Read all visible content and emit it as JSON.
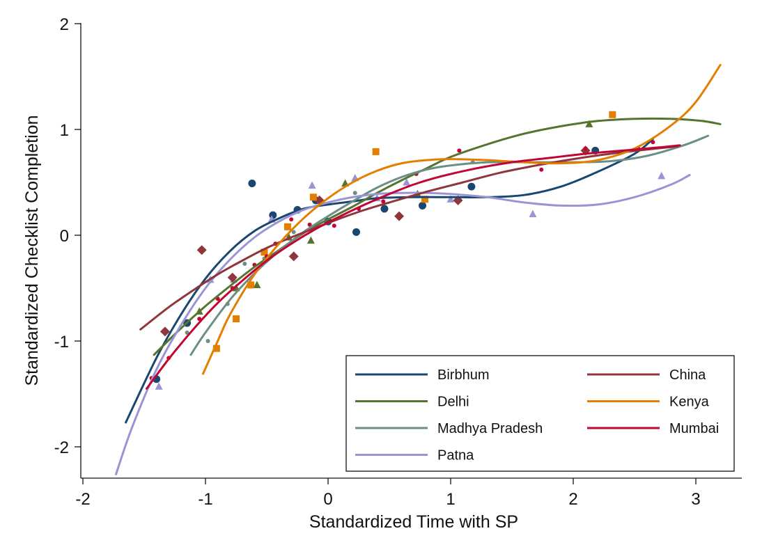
{
  "chart_data": {
    "type": "scatter",
    "title": "",
    "xlabel": "Standardized Time with SP",
    "ylabel": "Standardized Checklist Completion",
    "xlim": [
      -2.0,
      3.4
    ],
    "ylim": [
      -2.3,
      2.0
    ],
    "xticks": [
      "-2",
      "-1",
      "0",
      "1",
      "2",
      "3"
    ],
    "yticks": [
      "2",
      "1",
      "0",
      "-1",
      "-2"
    ],
    "grid": false,
    "legend_position": "bottom-right",
    "series": [
      {
        "name": "Birbhum",
        "color": "#1a476f",
        "marker": "circle",
        "points": [
          [
            -1.4,
            -1.36
          ],
          [
            -1.15,
            -0.83
          ],
          [
            -0.62,
            0.49
          ],
          [
            -0.45,
            0.19
          ],
          [
            -0.25,
            0.24
          ],
          [
            -0.1,
            0.33
          ],
          [
            0.0,
            0.13
          ],
          [
            0.23,
            0.03
          ],
          [
            0.46,
            0.25
          ],
          [
            0.77,
            0.28
          ],
          [
            1.17,
            0.46
          ],
          [
            2.18,
            0.8
          ]
        ],
        "curve": [
          [
            -1.65,
            -1.77
          ],
          [
            -1.4,
            -1.16
          ],
          [
            -1.2,
            -0.75
          ],
          [
            -1.0,
            -0.41
          ],
          [
            -0.8,
            -0.15
          ],
          [
            -0.6,
            0.04
          ],
          [
            -0.4,
            0.16
          ],
          [
            -0.2,
            0.25
          ],
          [
            0.0,
            0.29
          ],
          [
            0.2,
            0.32
          ],
          [
            0.4,
            0.35
          ],
          [
            0.7,
            0.36
          ],
          [
            1.0,
            0.36
          ],
          [
            1.3,
            0.36
          ],
          [
            1.6,
            0.38
          ],
          [
            1.9,
            0.46
          ],
          [
            2.2,
            0.6
          ],
          [
            2.5,
            0.77
          ],
          [
            2.65,
            0.91
          ]
        ]
      },
      {
        "name": "Delhi",
        "color": "#55752f",
        "marker": "triangle",
        "points": [
          [
            -1.05,
            -0.72
          ],
          [
            -0.75,
            -0.5
          ],
          [
            -0.58,
            -0.47
          ],
          [
            -0.32,
            -0.02
          ],
          [
            -0.14,
            -0.05
          ],
          [
            0.14,
            0.49
          ],
          [
            0.73,
            0.39
          ],
          [
            2.13,
            1.05
          ]
        ],
        "curve": [
          [
            -1.42,
            -1.13
          ],
          [
            -1.2,
            -0.88
          ],
          [
            -1.0,
            -0.67
          ],
          [
            -0.8,
            -0.48
          ],
          [
            -0.6,
            -0.3
          ],
          [
            -0.4,
            -0.14
          ],
          [
            -0.2,
            0.02
          ],
          [
            0.0,
            0.15
          ],
          [
            0.2,
            0.27
          ],
          [
            0.4,
            0.4
          ],
          [
            0.6,
            0.52
          ],
          [
            0.8,
            0.63
          ],
          [
            1.0,
            0.74
          ],
          [
            1.3,
            0.86
          ],
          [
            1.6,
            0.96
          ],
          [
            1.9,
            1.03
          ],
          [
            2.2,
            1.08
          ],
          [
            2.5,
            1.1
          ],
          [
            2.8,
            1.1
          ],
          [
            3.05,
            1.08
          ],
          [
            3.2,
            1.05
          ]
        ]
      },
      {
        "name": "Madhya Pradesh",
        "color": "#6b8e86",
        "marker": "dot",
        "points": [
          [
            -1.15,
            -0.92
          ],
          [
            -0.98,
            -1.0
          ],
          [
            -0.82,
            -0.65
          ],
          [
            -0.68,
            -0.27
          ],
          [
            -0.52,
            -0.22
          ],
          [
            -0.28,
            0.03
          ],
          [
            0.22,
            0.4
          ],
          [
            1.18,
            0.69
          ]
        ],
        "curve": [
          [
            -1.12,
            -1.13
          ],
          [
            -1.0,
            -0.92
          ],
          [
            -0.8,
            -0.61
          ],
          [
            -0.6,
            -0.36
          ],
          [
            -0.4,
            -0.15
          ],
          [
            -0.2,
            0.03
          ],
          [
            0.0,
            0.18
          ],
          [
            0.2,
            0.32
          ],
          [
            0.4,
            0.45
          ],
          [
            0.6,
            0.55
          ],
          [
            0.8,
            0.62
          ],
          [
            1.0,
            0.66
          ],
          [
            1.3,
            0.69
          ],
          [
            1.6,
            0.69
          ],
          [
            2.0,
            0.69
          ],
          [
            2.3,
            0.7
          ],
          [
            2.6,
            0.75
          ],
          [
            2.9,
            0.85
          ],
          [
            3.1,
            0.94
          ]
        ]
      },
      {
        "name": "Patna",
        "color": "#9a94d4",
        "marker": "triangle",
        "points": [
          [
            -1.38,
            -1.43
          ],
          [
            -0.96,
            -0.42
          ],
          [
            -0.77,
            -0.42
          ],
          [
            -0.46,
            0.15
          ],
          [
            -0.13,
            0.47
          ],
          [
            0.22,
            0.54
          ],
          [
            0.4,
            0.35
          ],
          [
            0.64,
            0.5
          ],
          [
            1.0,
            0.34
          ],
          [
            1.67,
            0.2
          ],
          [
            2.72,
            0.56
          ]
        ],
        "curve": [
          [
            -1.73,
            -2.26
          ],
          [
            -1.6,
            -1.82
          ],
          [
            -1.4,
            -1.27
          ],
          [
            -1.2,
            -0.85
          ],
          [
            -1.0,
            -0.5
          ],
          [
            -0.8,
            -0.23
          ],
          [
            -0.6,
            -0.02
          ],
          [
            -0.4,
            0.13
          ],
          [
            -0.2,
            0.24
          ],
          [
            0.0,
            0.31
          ],
          [
            0.2,
            0.36
          ],
          [
            0.4,
            0.39
          ],
          [
            0.6,
            0.4
          ],
          [
            0.8,
            0.4
          ],
          [
            1.0,
            0.39
          ],
          [
            1.3,
            0.36
          ],
          [
            1.6,
            0.31
          ],
          [
            1.9,
            0.28
          ],
          [
            2.2,
            0.29
          ],
          [
            2.5,
            0.36
          ],
          [
            2.8,
            0.48
          ],
          [
            2.95,
            0.57
          ]
        ]
      },
      {
        "name": "China",
        "color": "#90353b",
        "marker": "diamond",
        "points": [
          [
            -1.33,
            -0.91
          ],
          [
            -1.03,
            -0.14
          ],
          [
            -0.78,
            -0.4
          ],
          [
            -0.28,
            -0.2
          ],
          [
            -0.07,
            0.33
          ],
          [
            0.58,
            0.18
          ],
          [
            1.06,
            0.33
          ],
          [
            2.1,
            0.8
          ]
        ],
        "curve": [
          [
            -1.53,
            -0.89
          ],
          [
            -1.3,
            -0.68
          ],
          [
            -1.1,
            -0.52
          ],
          [
            -0.9,
            -0.37
          ],
          [
            -0.7,
            -0.24
          ],
          [
            -0.5,
            -0.12
          ],
          [
            -0.3,
            -0.02
          ],
          [
            -0.1,
            0.07
          ],
          [
            0.1,
            0.16
          ],
          [
            0.3,
            0.24
          ],
          [
            0.5,
            0.31
          ],
          [
            0.8,
            0.41
          ],
          [
            1.1,
            0.5
          ],
          [
            1.4,
            0.59
          ],
          [
            1.7,
            0.66
          ],
          [
            2.0,
            0.72
          ],
          [
            2.3,
            0.77
          ],
          [
            2.6,
            0.81
          ],
          [
            2.85,
            0.84
          ]
        ]
      },
      {
        "name": "Kenya",
        "color": "#e37e00",
        "marker": "square",
        "points": [
          [
            -0.91,
            -1.07
          ],
          [
            -0.75,
            -0.79
          ],
          [
            -0.63,
            -0.47
          ],
          [
            -0.52,
            -0.16
          ],
          [
            -0.33,
            0.08
          ],
          [
            -0.12,
            0.36
          ],
          [
            0.39,
            0.79
          ],
          [
            0.79,
            0.34
          ],
          [
            2.32,
            1.14
          ]
        ],
        "curve": [
          [
            -1.02,
            -1.31
          ],
          [
            -0.9,
            -1.0
          ],
          [
            -0.8,
            -0.75
          ],
          [
            -0.6,
            -0.37
          ],
          [
            -0.4,
            -0.08
          ],
          [
            -0.2,
            0.16
          ],
          [
            0.0,
            0.35
          ],
          [
            0.2,
            0.5
          ],
          [
            0.4,
            0.61
          ],
          [
            0.6,
            0.68
          ],
          [
            0.8,
            0.71
          ],
          [
            1.0,
            0.72
          ],
          [
            1.3,
            0.71
          ],
          [
            1.6,
            0.69
          ],
          [
            1.9,
            0.68
          ],
          [
            2.2,
            0.71
          ],
          [
            2.5,
            0.82
          ],
          [
            2.8,
            1.04
          ],
          [
            3.0,
            1.26
          ],
          [
            3.2,
            1.61
          ]
        ]
      },
      {
        "name": "Mumbai",
        "color": "#c10534",
        "marker": "dot",
        "points": [
          [
            -1.44,
            -1.35
          ],
          [
            -1.3,
            -1.16
          ],
          [
            -1.05,
            -0.79
          ],
          [
            -0.9,
            -0.6
          ],
          [
            -0.78,
            -0.5
          ],
          [
            -0.6,
            -0.28
          ],
          [
            -0.5,
            -0.2
          ],
          [
            -0.43,
            -0.08
          ],
          [
            -0.3,
            0.15
          ],
          [
            -0.15,
            0.1
          ],
          [
            0.05,
            0.09
          ],
          [
            0.25,
            0.25
          ],
          [
            0.45,
            0.32
          ],
          [
            0.72,
            0.58
          ],
          [
            1.07,
            0.8
          ],
          [
            1.74,
            0.62
          ],
          [
            2.1,
            0.82
          ],
          [
            2.53,
            0.82
          ],
          [
            2.65,
            0.88
          ]
        ],
        "curve": [
          [
            -1.48,
            -1.45
          ],
          [
            -1.3,
            -1.17
          ],
          [
            -1.1,
            -0.89
          ],
          [
            -0.9,
            -0.64
          ],
          [
            -0.7,
            -0.43
          ],
          [
            -0.5,
            -0.24
          ],
          [
            -0.3,
            -0.08
          ],
          [
            -0.1,
            0.06
          ],
          [
            0.1,
            0.18
          ],
          [
            0.3,
            0.29
          ],
          [
            0.5,
            0.39
          ],
          [
            0.7,
            0.48
          ],
          [
            0.9,
            0.55
          ],
          [
            1.2,
            0.63
          ],
          [
            1.5,
            0.69
          ],
          [
            1.8,
            0.73
          ],
          [
            2.1,
            0.77
          ],
          [
            2.4,
            0.8
          ],
          [
            2.7,
            0.83
          ],
          [
            2.87,
            0.85
          ]
        ]
      }
    ]
  }
}
